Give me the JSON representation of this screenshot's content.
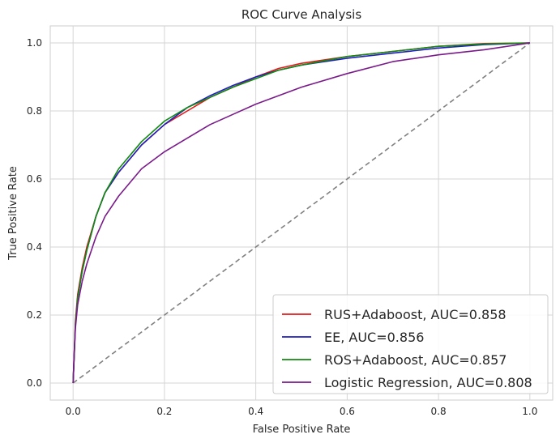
{
  "chart_data": {
    "type": "line",
    "title": "ROC Curve Analysis",
    "xlabel": "False Positive Rate",
    "ylabel": "True Positive Rate",
    "xlim": [
      -0.05,
      1.05
    ],
    "ylim": [
      -0.05,
      1.05
    ],
    "xticks": [
      "0.0",
      "0.2",
      "0.4",
      "0.6",
      "0.8",
      "1.0"
    ],
    "yticks": [
      "0.0",
      "0.2",
      "0.4",
      "0.6",
      "0.8",
      "1.0"
    ],
    "grid": true,
    "legend_position": "bottom-right",
    "reference_line": {
      "x": [
        0,
        1
      ],
      "y": [
        0,
        1
      ],
      "color": "#808080",
      "style": "dashed"
    },
    "series": [
      {
        "name": "RUS+Adaboost, AUC=0.858",
        "color": "#e41a1c",
        "x": [
          0,
          0.005,
          0.01,
          0.02,
          0.03,
          0.05,
          0.07,
          0.1,
          0.15,
          0.2,
          0.25,
          0.3,
          0.35,
          0.4,
          0.45,
          0.5,
          0.6,
          0.7,
          0.8,
          0.9,
          1.0
        ],
        "y": [
          0,
          0.18,
          0.26,
          0.34,
          0.4,
          0.49,
          0.56,
          0.62,
          0.7,
          0.76,
          0.8,
          0.84,
          0.87,
          0.9,
          0.925,
          0.94,
          0.96,
          0.975,
          0.99,
          0.998,
          1.0
        ]
      },
      {
        "name": "EE, AUC=0.856",
        "color": "#1f1fbf",
        "x": [
          0,
          0.005,
          0.01,
          0.02,
          0.03,
          0.05,
          0.07,
          0.1,
          0.15,
          0.2,
          0.25,
          0.3,
          0.35,
          0.4,
          0.45,
          0.5,
          0.6,
          0.7,
          0.8,
          0.9,
          1.0
        ],
        "y": [
          0,
          0.17,
          0.25,
          0.33,
          0.39,
          0.49,
          0.56,
          0.62,
          0.7,
          0.76,
          0.81,
          0.845,
          0.875,
          0.9,
          0.92,
          0.935,
          0.955,
          0.97,
          0.985,
          0.995,
          1.0
        ]
      },
      {
        "name": "ROS+Adaboost, AUC=0.857",
        "color": "#108a10",
        "x": [
          0,
          0.005,
          0.01,
          0.02,
          0.03,
          0.05,
          0.07,
          0.1,
          0.15,
          0.2,
          0.25,
          0.3,
          0.35,
          0.4,
          0.45,
          0.5,
          0.6,
          0.7,
          0.8,
          0.9,
          1.0
        ],
        "y": [
          0,
          0.17,
          0.25,
          0.33,
          0.39,
          0.49,
          0.56,
          0.63,
          0.71,
          0.77,
          0.81,
          0.84,
          0.87,
          0.895,
          0.92,
          0.935,
          0.96,
          0.975,
          0.99,
          0.997,
          1.0
        ]
      },
      {
        "name": "Logistic Regression, AUC=0.808",
        "color": "#7a1a8a",
        "x": [
          0,
          0.005,
          0.01,
          0.02,
          0.03,
          0.05,
          0.07,
          0.1,
          0.15,
          0.2,
          0.25,
          0.3,
          0.35,
          0.4,
          0.45,
          0.5,
          0.6,
          0.7,
          0.8,
          0.9,
          1.0
        ],
        "y": [
          0,
          0.16,
          0.23,
          0.3,
          0.35,
          0.43,
          0.49,
          0.55,
          0.63,
          0.68,
          0.72,
          0.76,
          0.79,
          0.82,
          0.845,
          0.87,
          0.91,
          0.945,
          0.965,
          0.98,
          1.0
        ]
      }
    ]
  }
}
